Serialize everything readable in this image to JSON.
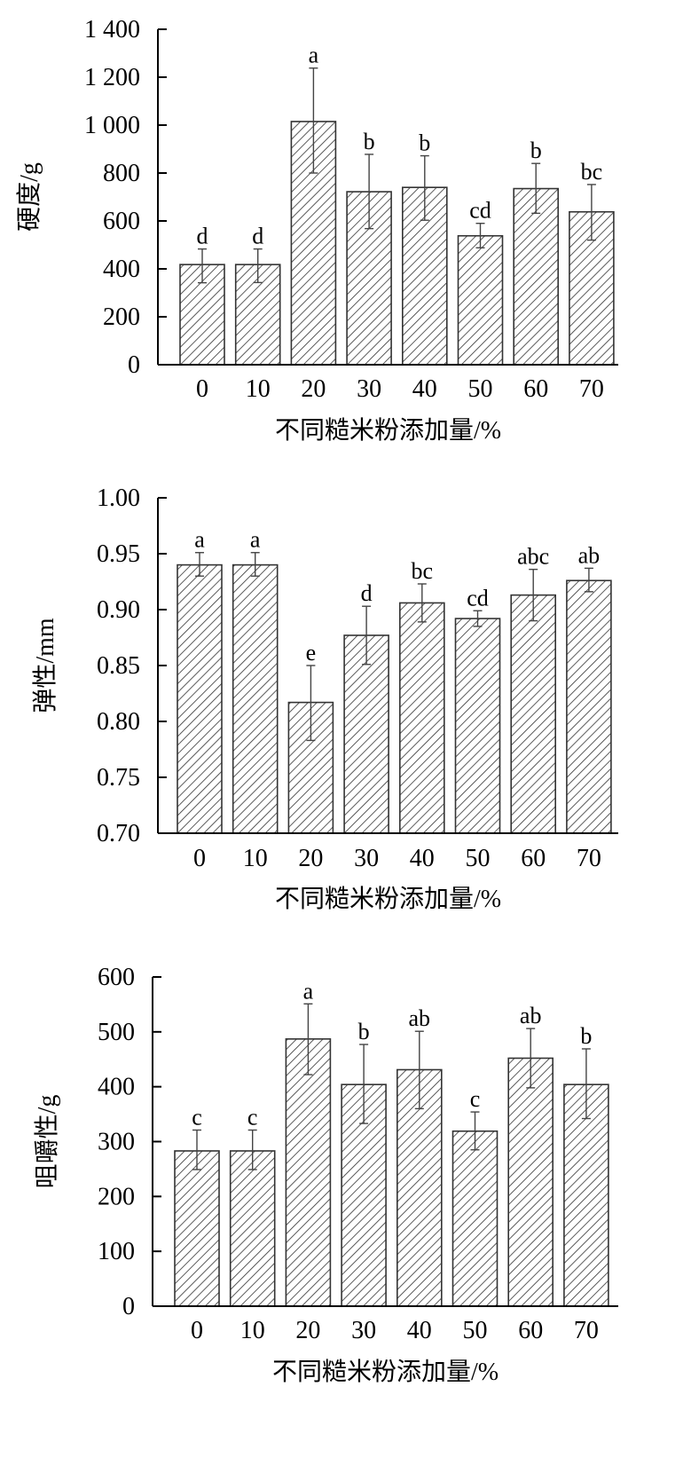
{
  "chart_data": [
    {
      "type": "bar",
      "title": "",
      "xlabel": "不同糙米粉添加量/%",
      "ylabel": "硬度/g",
      "categories": [
        "0",
        "10",
        "20",
        "30",
        "40",
        "50",
        "60",
        "70"
      ],
      "ylim": [
        0,
        1400
      ],
      "yticks": [
        0,
        200,
        400,
        600,
        800,
        1000,
        1200,
        1400
      ],
      "ytick_labels": [
        "0",
        "200",
        "400",
        "600",
        "800",
        "1 000",
        "1 200",
        "1 400"
      ],
      "values": [
        418,
        418,
        1015,
        722,
        740,
        538,
        735,
        638
      ],
      "err_low": [
        342,
        343,
        800,
        568,
        603,
        488,
        632,
        520
      ],
      "err_high": [
        483,
        483,
        1238,
        878,
        872,
        590,
        840,
        752
      ],
      "labels": [
        "d",
        "d",
        "a",
        "b",
        "b",
        "cd",
        "b",
        "bc"
      ],
      "grid": false,
      "pattern": "diagonal-hatch"
    },
    {
      "type": "bar",
      "title": "",
      "xlabel": "不同糙米粉添加量/%",
      "ylabel": "弹性/mm",
      "categories": [
        "0",
        "10",
        "20",
        "30",
        "40",
        "50",
        "60",
        "70"
      ],
      "ylim": [
        0.7,
        1.0
      ],
      "yticks": [
        0.7,
        0.75,
        0.8,
        0.85,
        0.9,
        0.95,
        1.0
      ],
      "ytick_labels": [
        "0.70",
        "0.75",
        "0.80",
        "0.85",
        "0.90",
        "0.95",
        "1.00"
      ],
      "values": [
        0.94,
        0.94,
        0.817,
        0.877,
        0.906,
        0.892,
        0.913,
        0.926
      ],
      "err_low": [
        0.93,
        0.93,
        0.783,
        0.851,
        0.889,
        0.885,
        0.89,
        0.916
      ],
      "err_high": [
        0.951,
        0.951,
        0.85,
        0.903,
        0.923,
        0.899,
        0.936,
        0.937
      ],
      "labels": [
        "a",
        "a",
        "e",
        "d",
        "bc",
        "cd",
        "abc",
        "ab"
      ],
      "grid": false,
      "pattern": "diagonal-hatch"
    },
    {
      "type": "bar",
      "title": "",
      "xlabel": "不同糙米粉添加量/%",
      "ylabel": "咀嚼性/g",
      "categories": [
        "0",
        "10",
        "20",
        "30",
        "40",
        "50",
        "60",
        "70"
      ],
      "ylim": [
        0,
        600
      ],
      "yticks": [
        0,
        100,
        200,
        300,
        400,
        500,
        600
      ],
      "ytick_labels": [
        "0",
        "100",
        "200",
        "300",
        "400",
        "500",
        "600"
      ],
      "values": [
        283,
        283,
        487,
        404,
        431,
        319,
        452,
        404
      ],
      "err_low": [
        249,
        249,
        422,
        333,
        360,
        285,
        398,
        342
      ],
      "err_high": [
        321,
        321,
        551,
        477,
        501,
        354,
        506,
        469
      ],
      "labels": [
        "c",
        "c",
        "a",
        "b",
        "ab",
        "c",
        "ab",
        "b"
      ],
      "grid": false,
      "pattern": "diagonal-hatch"
    }
  ]
}
